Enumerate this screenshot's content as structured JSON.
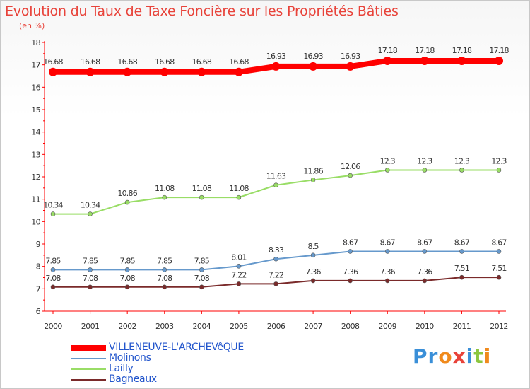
{
  "header": {
    "title": "Evolution du Taux de Taxe Foncière sur les Propriétés Bâties",
    "unit": "(en %)"
  },
  "logo": {
    "text": "Proxiti",
    "letter_colors": [
      "#3a8fd8",
      "#3a8fd8",
      "#f08a1c",
      "#e8433a",
      "#3a8fd8",
      "#8cc63f",
      "#f08a1c"
    ]
  },
  "chart_data": {
    "type": "line",
    "title": "Evolution du Taux de Taxe Foncière sur les Propriétés Bâties",
    "ylabel": "(en %)",
    "xlabel": "",
    "x": [
      "2000",
      "2001",
      "2002",
      "2003",
      "2004",
      "2005",
      "2006",
      "2007",
      "2008",
      "2009",
      "2010",
      "2011",
      "2012"
    ],
    "ylim": [
      6,
      18
    ],
    "yticks": [
      "6",
      "7",
      "8",
      "9",
      "10",
      "11",
      "12",
      "13",
      "14",
      "15",
      "16",
      "17",
      "18"
    ],
    "grid": false,
    "legend_placement": "bottom-left",
    "series": [
      {
        "name": "VILLENEUVE-L'ARCHEVêQUE",
        "color": "#ff0000",
        "values": [
          16.68,
          16.68,
          16.68,
          16.68,
          16.68,
          16.68,
          16.93,
          16.93,
          16.93,
          17.18,
          17.18,
          17.18,
          17.18
        ],
        "labels": [
          "16.68",
          "16.68",
          "16.68",
          "16.68",
          "16.68",
          "16.68",
          "16.93",
          "16.93",
          "16.93",
          "17.18",
          "17.18",
          "17.18",
          "17.18"
        ]
      },
      {
        "name": "Molinons",
        "color": "#6699cc",
        "values": [
          7.85,
          7.85,
          7.85,
          7.85,
          7.85,
          8.01,
          8.33,
          8.5,
          8.67,
          8.67,
          8.67,
          8.67,
          8.67
        ],
        "labels": [
          "7.85",
          "7.85",
          "7.85",
          "7.85",
          "7.85",
          "8.01",
          "8.33",
          "8.5",
          "8.67",
          "8.67",
          "8.67",
          "8.67",
          "8.67"
        ]
      },
      {
        "name": "Lailly",
        "color": "#99dd66",
        "values": [
          10.34,
          10.34,
          10.86,
          11.08,
          11.08,
          11.08,
          11.63,
          11.86,
          12.06,
          12.3,
          12.3,
          12.3,
          12.3
        ],
        "labels": [
          "10.34",
          "10.34",
          "10.86",
          "11.08",
          "11.08",
          "11.08",
          "11.63",
          "11.86",
          "12.06",
          "12.3",
          "12.3",
          "12.3",
          "12.3"
        ]
      },
      {
        "name": "Bagneaux",
        "color": "#7a2a2a",
        "values": [
          7.08,
          7.08,
          7.08,
          7.08,
          7.08,
          7.22,
          7.22,
          7.36,
          7.36,
          7.36,
          7.36,
          7.51,
          7.51
        ],
        "labels": [
          "7.08",
          "7.08",
          "7.08",
          "7.08",
          "7.08",
          "7.22",
          "7.22",
          "7.36",
          "7.36",
          "7.36",
          "7.36",
          "7.51",
          "7.51"
        ]
      }
    ]
  }
}
